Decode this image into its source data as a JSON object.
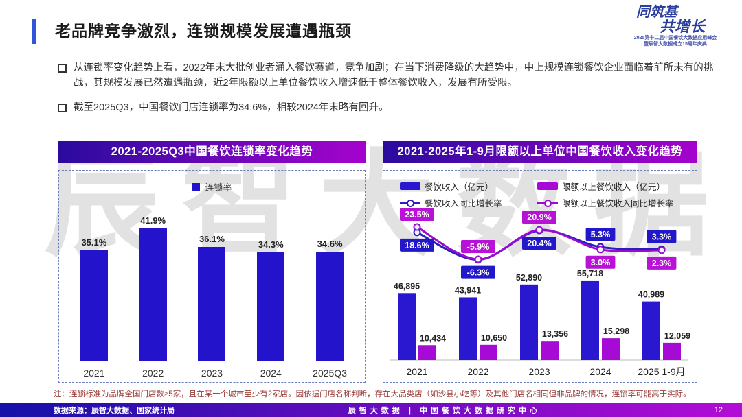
{
  "header": {
    "title": "老品牌竞争激烈，连锁规模发展遭遇瓶颈"
  },
  "logo": {
    "line1": "同筑基",
    "line2": "共增长",
    "sub1": "2025第十二届中国餐饮大数据应用峰会",
    "sub2": "暨辰智大数据成立15周年庆典"
  },
  "bullets": [
    "从连锁率变化趋势上看，2022年末大批创业者涌入餐饮赛道，竞争加剧；在当下消费降级的大趋势中，中上规模连锁餐饮企业面临着前所未有的挑战，其规模发展已然遭遇瓶颈，近2年限额以上单位餐饮收入增速低于整体餐饮收入，发展有所受限。",
    "截至2025Q3，中国餐饮门店连锁率为34.6%，相较2024年末略有回升。"
  ],
  "watermark": "辰智大数据",
  "chart_data": [
    {
      "type": "bar",
      "title": "2021-2025Q3中国餐饮连锁率变化趋势",
      "legend": [
        "连锁率"
      ],
      "categories": [
        "2021",
        "2022",
        "2023",
        "2024",
        "2025Q3"
      ],
      "series": [
        {
          "name": "连锁率",
          "values": [
            35.1,
            41.9,
            36.1,
            34.3,
            34.6
          ],
          "labels": [
            "35.1%",
            "41.9%",
            "36.1%",
            "34.3%",
            "34.6%"
          ]
        }
      ],
      "unit": "%",
      "ylim": [
        0,
        45
      ],
      "grid": false,
      "legend_position": "top-center"
    },
    {
      "type": "combo",
      "title": "2021-2025年1-9月限额以上单位中国餐饮收入变化趋势",
      "categories": [
        "2021",
        "2022",
        "2023",
        "2024",
        "2025 1-9月"
      ],
      "bar_series": [
        {
          "name": "餐饮收入（亿元）",
          "color": "#2a17d0",
          "values": [
            46895,
            43941,
            52890,
            55718,
            40989
          ],
          "labels": [
            "46,895",
            "43,941",
            "52,890",
            "55,718",
            "40,989"
          ]
        },
        {
          "name": "限额以上餐饮收入（亿元）",
          "color": "#a50bd5",
          "values": [
            10434,
            10650,
            13356,
            15298,
            12059
          ],
          "labels": [
            "10,434",
            "10,650",
            "13,356",
            "15,298",
            "12,059"
          ]
        }
      ],
      "line_series": [
        {
          "name": "餐饮收入同比增长率",
          "color": "#2a1ec0",
          "chip": "#2318c9",
          "values": [
            18.6,
            -6.3,
            20.4,
            5.3,
            3.3
          ],
          "labels": [
            "18.6%",
            "-6.3%",
            "20.4%",
            "5.3%",
            "3.3%"
          ]
        },
        {
          "name": "限额以上餐饮收入同比增长率",
          "color": "#9b0ad0",
          "chip": "#b712d6",
          "values": [
            23.5,
            -5.9,
            20.9,
            3.0,
            2.3
          ],
          "labels": [
            "23.5%",
            "-5.9%",
            "20.9%",
            "3.0%",
            "2.3%"
          ]
        }
      ],
      "bar_ylim": [
        0,
        60000
      ],
      "line_ylim": [
        -10,
        25
      ],
      "grid": false,
      "legend_position": "top"
    }
  ],
  "note": "注：连锁标准为品牌全国门店数≥5家，且在某一个城市至少有2家店。因依据门店名称判断，存在大品类店（如沙县小吃等）及其他门店名相同但非品牌的情况，连锁率可能高于实际。",
  "footer": {
    "source": "数据来源：辰智大数据、国家统计局",
    "center": "辰智大数据 | 中国餐饮大数据研究中心",
    "page": "12"
  },
  "colors": {
    "accent": "#2f55d9",
    "banner_from": "#2a0b9e",
    "banner_to": "#a503cd",
    "bar_blue": "#2313cb",
    "bar_magenta": "#a50bd5",
    "line_blue": "#2a1ec0",
    "line_magenta": "#9b0ad0",
    "chip_blue": "#2318c9",
    "chip_magenta": "#b712d6",
    "dashed_border": "#6b7fc0",
    "note_red": "#9a3c38",
    "footer_from": "#1511a8",
    "footer_mid": "#6e0bc0",
    "footer_to": "#b30dd6",
    "watermark_gray": "#bfbfbf"
  }
}
